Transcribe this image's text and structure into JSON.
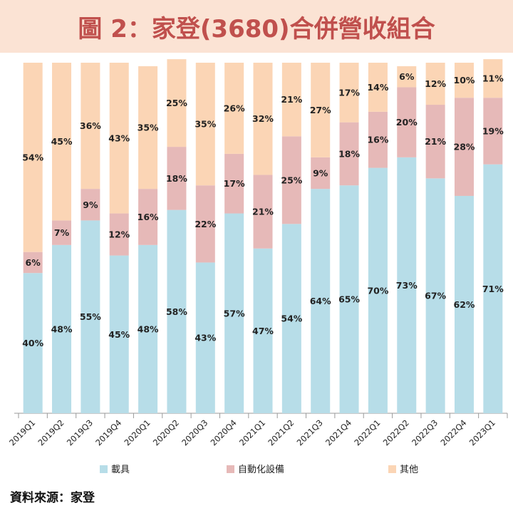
{
  "header": {
    "title": "圖 2：家登(3680)合併營收組合"
  },
  "source": "資料來源：家登",
  "colors": {
    "載具": "#b7dde8",
    "自動化設備": "#e6b9b8",
    "其他": "#fbd5b5",
    "title": "#c0504d",
    "title_bg": "#fbe3d4"
  },
  "chart_data": {
    "type": "bar",
    "stacked": true,
    "percent_scale": true,
    "categories": [
      "2019Q1",
      "2019Q2",
      "2019Q3",
      "2019Q4",
      "2020Q1",
      "2020Q2",
      "2020Q3",
      "2020Q4",
      "2021Q1",
      "2021Q2",
      "2021Q3",
      "2021Q4",
      "2022Q1",
      "2022Q2",
      "2022Q3",
      "2022Q4",
      "2023Q1"
    ],
    "series": [
      {
        "name": "載具",
        "values": [
          40,
          48,
          55,
          45,
          48,
          58,
          43,
          57,
          47,
          54,
          64,
          65,
          70,
          73,
          67,
          62,
          71
        ]
      },
      {
        "name": "自動化設備",
        "values": [
          6,
          7,
          9,
          12,
          16,
          18,
          22,
          17,
          21,
          25,
          9,
          18,
          16,
          20,
          21,
          28,
          19
        ]
      },
      {
        "name": "其他",
        "values": [
          54,
          45,
          36,
          43,
          35,
          25,
          35,
          26,
          32,
          21,
          27,
          17,
          14,
          6,
          12,
          10,
          11
        ]
      }
    ],
    "value_suffix": "%",
    "ylim": [
      0,
      100
    ],
    "legend_position": "bottom",
    "grid": false
  }
}
